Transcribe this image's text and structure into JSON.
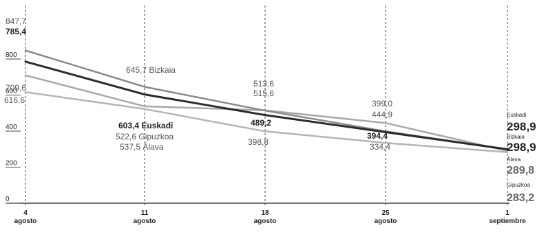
{
  "chart_data": {
    "type": "line",
    "title": "",
    "xlabel": "",
    "ylabel": "",
    "ylim": [
      0,
      900
    ],
    "yticks": [
      0,
      200,
      400,
      600,
      800
    ],
    "ytick_labels": [
      "0",
      "200",
      "400",
      "600",
      "800"
    ],
    "grid": false,
    "x_ticks": [
      {
        "day": "4",
        "month": "agosto"
      },
      {
        "day": "11",
        "month": "agosto"
      },
      {
        "day": "18",
        "month": "agosto"
      },
      {
        "day": "25",
        "month": "agosto"
      },
      {
        "day": "1",
        "month": "septiembre"
      }
    ],
    "series": [
      {
        "name": "Bizkaia",
        "color": "#8a8a8a",
        "values": [
          847.7,
          645.7,
          513.6,
          399.0,
          298.9
        ]
      },
      {
        "name": "Euskadi",
        "color": "#2b2b2b",
        "values": [
          785.4,
          603.4,
          489.2,
          394.4,
          298.9
        ]
      },
      {
        "name": "Álava",
        "color": "#a8a8a8",
        "values": [
          709.6,
          537.5,
          515.6,
          444.9,
          289.8
        ]
      },
      {
        "name": "Gipuzkoa",
        "color": "#b4b4b4",
        "values": [
          616.6,
          522.6,
          398.8,
          334.4,
          283.2
        ]
      }
    ],
    "annotations": [
      {
        "text": "847,7",
        "style": "light"
      },
      {
        "text": "785,4",
        "style": "strong"
      },
      {
        "text": "709,6",
        "style": "light"
      },
      {
        "text": "616,6",
        "style": "light"
      },
      {
        "text": "645,7 Bizkaia",
        "style": "light"
      },
      {
        "text": "603,4 Euskadi",
        "style": "strong"
      },
      {
        "text": "522,6 Gipuzkoa",
        "style": "light"
      },
      {
        "text": "537,5 Álava",
        "style": "light"
      },
      {
        "text": "513,6",
        "style": "light"
      },
      {
        "text": "515,6",
        "style": "light"
      },
      {
        "text": "489,2",
        "style": "strong"
      },
      {
        "text": "398,8",
        "style": "light"
      },
      {
        "text": "399,0",
        "style": "light"
      },
      {
        "text": "444,9",
        "style": "light"
      },
      {
        "text": "394,4",
        "style": "strong"
      },
      {
        "text": "334,4",
        "style": "light"
      }
    ],
    "end_labels": [
      {
        "name": "Euskadi",
        "value": "298,9"
      },
      {
        "name": "Bizkaia",
        "value": "298,9"
      },
      {
        "name": "Álava",
        "value": "289,8"
      },
      {
        "name": "Gipuzkoa",
        "value": "283,2"
      }
    ]
  }
}
